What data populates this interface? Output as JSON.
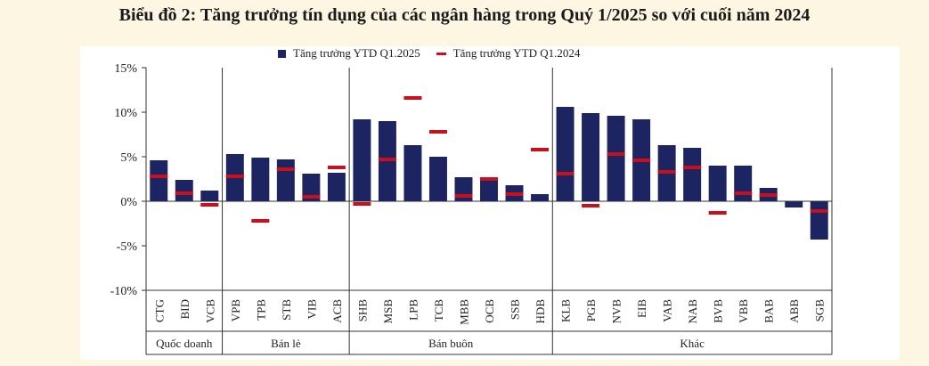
{
  "title": "Biểu đồ 2: Tăng trưởng tín dụng của các ngân hàng trong Quý 1/2025 so với cuối năm 2024",
  "colors": {
    "bar": "#1c2561",
    "marker": "#c8101d",
    "background": "#fdf6e3"
  },
  "chart_data": {
    "type": "bar",
    "title": "Biểu đồ 2: Tăng trưởng tín dụng của các ngân hàng trong Quý 1/2025 so với cuối năm 2024",
    "ylim": [
      -10,
      15
    ],
    "yticks": [
      15,
      10,
      5,
      0,
      -5,
      -10
    ],
    "ytick_labels": [
      "15%",
      "10%",
      "5%",
      "0%",
      "-5%",
      "-10%"
    ],
    "grid": false,
    "legend_position": "top-center",
    "categories": [
      "CTG",
      "BID",
      "VCB",
      "VPB",
      "TPB",
      "STB",
      "VIB",
      "ACB",
      "SHB",
      "MSB",
      "LPB",
      "TCB",
      "MBB",
      "OCB",
      "SSB",
      "HDB",
      "KLB",
      "PGB",
      "NVB",
      "EIB",
      "VAB",
      "NAB",
      "BVB",
      "VBB",
      "BAB",
      "ABB",
      "SGB"
    ],
    "groups": [
      {
        "label": "Quốc doanh",
        "start": 0,
        "end": 2
      },
      {
        "label": "Bán lẻ",
        "start": 3,
        "end": 7
      },
      {
        "label": "Bán buôn",
        "start": 8,
        "end": 15
      },
      {
        "label": "Khác",
        "start": 16,
        "end": 26
      }
    ],
    "series": [
      {
        "name": "Tăng trưởng YTD Q1.2025",
        "kind": "bar",
        "values": [
          4.6,
          2.4,
          1.2,
          5.3,
          4.9,
          4.7,
          3.1,
          3.2,
          9.2,
          9.0,
          6.3,
          5.0,
          2.7,
          2.6,
          1.8,
          0.8,
          10.6,
          9.9,
          9.6,
          9.2,
          6.3,
          6.0,
          4.0,
          4.0,
          1.5,
          -0.7,
          -4.3
        ]
      },
      {
        "name": "Tăng trưởng YTD Q1.2024",
        "kind": "marker",
        "values": [
          2.8,
          0.9,
          -0.4,
          2.8,
          -2.2,
          3.6,
          0.5,
          3.8,
          -0.3,
          4.7,
          11.6,
          7.8,
          0.6,
          2.5,
          0.8,
          5.8,
          3.1,
          -0.5,
          5.3,
          4.6,
          3.3,
          3.8,
          -1.3,
          0.9,
          0.7,
          null,
          -1.1
        ]
      }
    ]
  }
}
